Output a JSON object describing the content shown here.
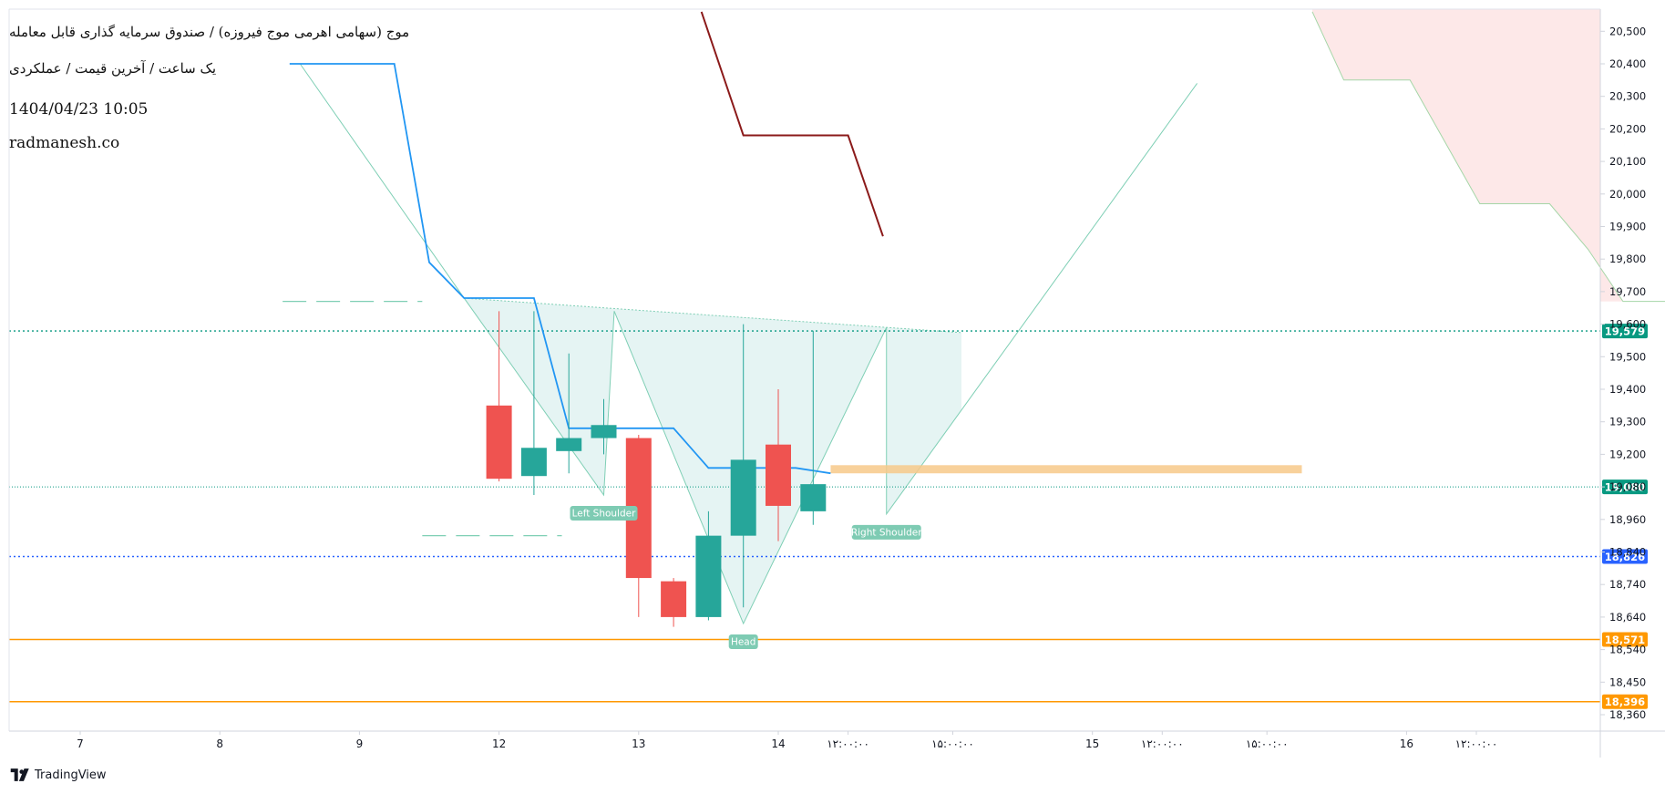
{
  "header": {
    "title": "موج (سهامی اهرمی موج فیروزه) / صندوق سرمایه گذاری قابل معامله",
    "subtitle": "یک ساعت / آخرین قیمت / عملکردی",
    "datetime": "1404/04/23 10:05",
    "website": "radmanesh.co"
  },
  "brand": {
    "name": "TradingView",
    "icon": "tradingview-logo-icon"
  },
  "colors": {
    "up": "#26a69a",
    "down": "#ef5350",
    "blue_line": "#2196f3",
    "maroon_line": "#8b1a1a",
    "pattern_fill": "#26a69a",
    "support_orange": "#ff9800",
    "orange_band": "#f7c98a",
    "cloud_fill": "#fde8e8",
    "level_19579": "#089981",
    "level_19080": "#089981",
    "level_18826": "#2962ff"
  },
  "chart_data": {
    "type": "candlestick",
    "y_ticks": [
      18360,
      18450,
      18540,
      18640,
      18740,
      18840,
      18960,
      19080,
      19200,
      19300,
      19400,
      19500,
      19600,
      19700,
      19800,
      19900,
      20000,
      20100,
      20200,
      20300,
      20400,
      20500
    ],
    "y_tick_labels": [
      "18,360",
      "18,450",
      "18,540",
      "18,640",
      "18,740",
      "18,840",
      "18,960",
      "19,080",
      "19,200",
      "19,300",
      "19,400",
      "19,500",
      "19,600",
      "19,700",
      "19,800",
      "19,900",
      "20,000",
      "20,100",
      "20,200",
      "20,300",
      "20,400",
      "20,500"
    ],
    "x_ticks": [
      {
        "label": "7",
        "x": 0
      },
      {
        "label": "8",
        "x": 4
      },
      {
        "label": "9",
        "x": 8
      },
      {
        "label": "12",
        "x": 12
      },
      {
        "label": "13",
        "x": 16
      },
      {
        "label": "14",
        "x": 20
      },
      {
        "label": "۱۲:۰۰:۰۰",
        "x": 22
      },
      {
        "label": "۱۵:۰۰:۰۰",
        "x": 25
      },
      {
        "label": "15",
        "x": 29
      },
      {
        "label": "۱۲:۰۰:۰۰",
        "x": 31
      },
      {
        "label": "۱۵:۰۰:۰۰",
        "x": 34
      },
      {
        "label": "16",
        "x": 38
      },
      {
        "label": "۱۲:۰۰:۰۰",
        "x": 40
      }
    ],
    "candles": [
      {
        "x": 12,
        "open": 19350,
        "high": 19640,
        "low": 19100,
        "close": 19110
      },
      {
        "x": 13,
        "open": 19120,
        "high": 19640,
        "low": 19050,
        "close": 19220
      },
      {
        "x": 14,
        "open": 19210,
        "high": 19510,
        "low": 19130,
        "close": 19250
      },
      {
        "x": 15,
        "open": 19250,
        "high": 19370,
        "low": 19200,
        "close": 19290
      },
      {
        "x": 16,
        "open": 19250,
        "high": 19260,
        "low": 18640,
        "close": 18760
      },
      {
        "x": 17,
        "open": 18750,
        "high": 18760,
        "low": 18610,
        "close": 18640
      },
      {
        "x": 18,
        "open": 18640,
        "high": 18990,
        "low": 18630,
        "close": 18900
      },
      {
        "x": 19,
        "open": 18900,
        "high": 19600,
        "low": 18670,
        "close": 19180
      },
      {
        "x": 20,
        "open": 19230,
        "high": 19400,
        "low": 18880,
        "close": 19010
      },
      {
        "x": 21,
        "open": 18990,
        "high": 19580,
        "low": 18940,
        "close": 19090
      }
    ],
    "blue_line": [
      {
        "x": 6.0,
        "y": 20400
      },
      {
        "x": 9.0,
        "y": 20400
      },
      {
        "x": 10.0,
        "y": 19790
      },
      {
        "x": 11.0,
        "y": 19680
      },
      {
        "x": 13.0,
        "y": 19680
      },
      {
        "x": 14.0,
        "y": 19280
      },
      {
        "x": 17.0,
        "y": 19280
      },
      {
        "x": 18.0,
        "y": 19150
      },
      {
        "x": 20.5,
        "y": 19150
      },
      {
        "x": 21.5,
        "y": 19130
      }
    ],
    "maroon_line": [
      {
        "x": 17.8,
        "y": 20560
      },
      {
        "x": 19.0,
        "y": 20180
      },
      {
        "x": 22.0,
        "y": 20180
      },
      {
        "x": 23.0,
        "y": 19870
      }
    ],
    "head_shoulders": {
      "labels": {
        "left_shoulder": "Left Shoulder",
        "head": "Head",
        "right_shoulder": "Right Shoulder"
      },
      "points": {
        "start": {
          "x": 6.3,
          "y": 20400
        },
        "p1": {
          "x": 11.0,
          "y": 19680
        },
        "left_shoulder": {
          "x": 15.0,
          "y": 19050
        },
        "p3": {
          "x": 15.3,
          "y": 19640
        },
        "head": {
          "x": 19.0,
          "y": 18620
        },
        "p5": {
          "x": 23.1,
          "y": 19590
        },
        "right_shoulder": {
          "x": 23.1,
          "y": 18980
        },
        "target": {
          "x": 32.0,
          "y": 20340
        }
      }
    },
    "dashed_segments": [
      {
        "x1": 5.8,
        "x2": 9.8,
        "y": 19670
      },
      {
        "x1": 9.8,
        "x2": 13.8,
        "y": 18900
      }
    ],
    "orange_band": {
      "x1": 21.5,
      "x2": 35.0,
      "y_top": 19160,
      "y_bottom": 19130
    },
    "cloud": [
      {
        "x": 35.3,
        "y": 20560
      },
      {
        "x": 36.2,
        "y": 20350
      },
      {
        "x": 38.1,
        "y": 20350
      },
      {
        "x": 40.1,
        "y": 19970
      },
      {
        "x": 42.1,
        "y": 19970
      },
      {
        "x": 43.2,
        "y": 19830
      },
      {
        "x": 44.2,
        "y": 19670
      },
      {
        "x": 45.8,
        "y": 19670
      }
    ],
    "horizontal_levels": [
      {
        "value": 19579,
        "label": "19,579",
        "style": "dotted",
        "color": "#089981"
      },
      {
        "value": 19080,
        "label": "19,080",
        "style": "dotted-thin",
        "color": "#089981"
      },
      {
        "value": 18826,
        "label": "18,826",
        "style": "dotted",
        "color": "#2962ff"
      },
      {
        "value": 18571,
        "label": "18,571",
        "style": "solid",
        "color": "#ff9800"
      },
      {
        "value": 18396,
        "label": "18,396",
        "style": "solid",
        "color": "#ff9800"
      }
    ]
  }
}
